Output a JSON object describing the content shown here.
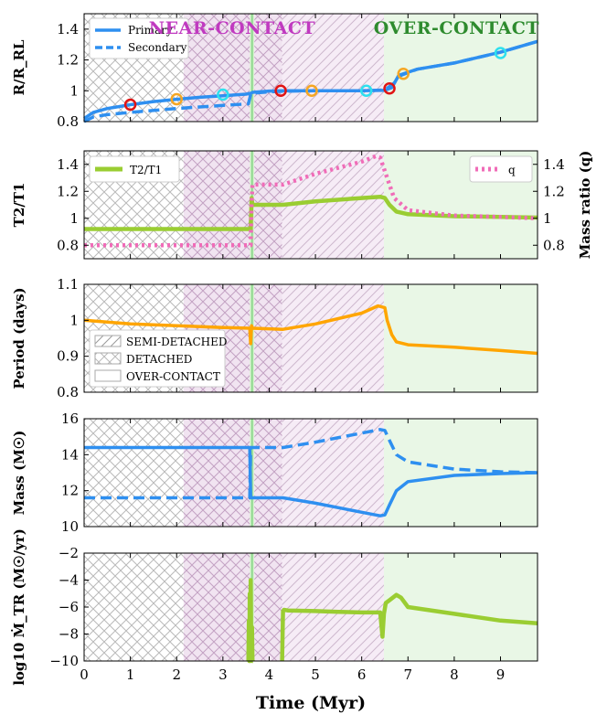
{
  "chart_data": {
    "type": "line",
    "xlabel": "Time (Myr)",
    "xlim": [
      0,
      9.8
    ],
    "xticks": [
      0,
      1,
      2,
      3,
      4,
      5,
      6,
      7,
      8,
      9
    ],
    "phases": {
      "labels": [
        {
          "text": "NEAR-CONTACT",
          "color": "#c03ac0",
          "x": 3.2
        },
        {
          "text": "OVER-CONTACT",
          "color": "#2e8b2e",
          "x": 8.05
        }
      ],
      "regions": [
        {
          "type": "detached",
          "x0": 0,
          "x1": 2.15
        },
        {
          "type": "near-detached",
          "x0": 2.15,
          "x1": 3.58
        },
        {
          "type": "overcontact-line",
          "x0": 3.58,
          "x1": 3.68
        },
        {
          "type": "near-detached",
          "x0": 3.68,
          "x1": 4.28
        },
        {
          "type": "near-semi",
          "x0": 4.28,
          "x1": 6.48
        },
        {
          "type": "overcontact",
          "x0": 6.48,
          "x1": 9.8
        }
      ]
    },
    "legend_regions": [
      "SEMI-DETACHED",
      "DETACHED",
      "OVER-CONTACT"
    ],
    "panels": [
      {
        "id": "radius",
        "ylabel": "R/R_RL",
        "ylim": [
          0.8,
          1.5
        ],
        "yticks": [
          0.8,
          1.0,
          1.2,
          1.4
        ],
        "legend": [
          "Primary",
          "Secondary"
        ],
        "series": [
          {
            "name": "Primary",
            "color": "#2e8ff0",
            "dash": "solid",
            "x": [
              0,
              0.2,
              0.5,
              1.0,
              1.5,
              2.0,
              2.5,
              3.0,
              3.5,
              3.62,
              3.64,
              4.0,
              4.3,
              5.0,
              5.5,
              6.0,
              6.5,
              6.65,
              6.8,
              7.2,
              8.0,
              9.0,
              9.8
            ],
            "y": [
              0.82,
              0.86,
              0.885,
              0.91,
              0.93,
              0.945,
              0.958,
              0.968,
              0.978,
              0.985,
              0.99,
              0.998,
              1.0,
              1.0,
              1.0,
              1.0,
              1.003,
              1.02,
              1.1,
              1.14,
              1.18,
              1.25,
              1.32
            ]
          },
          {
            "name": "Secondary",
            "color": "#2e8ff0",
            "dash": "dashed",
            "x": [
              0,
              0.2,
              0.5,
              1.0,
              2.0,
              3.0,
              3.55,
              3.6,
              3.64,
              4.0,
              4.3,
              5.0,
              6.0,
              6.5,
              6.7,
              6.85,
              7.2,
              8.0,
              9.0,
              9.8
            ],
            "y": [
              0.8,
              0.83,
              0.845,
              0.86,
              0.885,
              0.905,
              0.915,
              0.975,
              0.985,
              0.992,
              0.997,
              1.0,
              1.0,
              1.005,
              1.05,
              1.1,
              1.14,
              1.18,
              1.25,
              1.32
            ]
          }
        ],
        "markers": [
          {
            "x": 1.0,
            "y": 0.91,
            "color": "#e01414"
          },
          {
            "x": 2.0,
            "y": 0.945,
            "color": "#f5a623"
          },
          {
            "x": 3.0,
            "y": 0.975,
            "color": "#2ee0ee"
          },
          {
            "x": 4.25,
            "y": 1.0,
            "color": "#e01414"
          },
          {
            "x": 4.92,
            "y": 1.0,
            "color": "#f5a623"
          },
          {
            "x": 6.1,
            "y": 1.0,
            "color": "#2ee0ee"
          },
          {
            "x": 6.6,
            "y": 1.015,
            "color": "#e01414"
          },
          {
            "x": 6.9,
            "y": 1.11,
            "color": "#f5a623"
          },
          {
            "x": 9.0,
            "y": 1.245,
            "color": "#2ee0ee"
          }
        ]
      },
      {
        "id": "temp-ratio",
        "ylabel": "T2/T1",
        "ylabel_right": "Mass ratio (q)",
        "ylim": [
          0.7,
          1.5
        ],
        "yticks": [
          0.8,
          1.0,
          1.2,
          1.4
        ],
        "legend": [
          "T2/T1",
          "q"
        ],
        "series": [
          {
            "name": "T2/T1",
            "color": "#9acd32",
            "dash": "solid",
            "x": [
              0,
              3.6,
              3.62,
              3.64,
              4.3,
              5.0,
              6.0,
              6.4,
              6.5,
              6.6,
              6.75,
              7.0,
              8.0,
              9.0,
              9.8
            ],
            "y": [
              0.92,
              0.92,
              1.15,
              1.1,
              1.1,
              1.125,
              1.15,
              1.16,
              1.15,
              1.1,
              1.05,
              1.03,
              1.015,
              1.01,
              1.005
            ]
          },
          {
            "name": "q",
            "color": "#f06cb8",
            "dash": "dotted",
            "x": [
              0,
              3.6,
              3.62,
              3.64,
              4.3,
              5.0,
              6.0,
              6.3,
              6.4,
              6.55,
              6.7,
              7.0,
              8.0,
              9.0,
              9.8
            ],
            "y": [
              0.8,
              0.8,
              1.1,
              1.25,
              1.25,
              1.33,
              1.42,
              1.46,
              1.45,
              1.3,
              1.15,
              1.06,
              1.02,
              1.01,
              1.0
            ]
          }
        ]
      },
      {
        "id": "period",
        "ylabel": "Period (days)",
        "ylim": [
          0.8,
          1.1
        ],
        "yticks": [
          0.8,
          0.9,
          1.0,
          1.1
        ],
        "series": [
          {
            "name": "Period",
            "color": "#ffa500",
            "dash": "solid",
            "x": [
              0,
              1.0,
              2.0,
              3.0,
              3.58,
              3.6,
              3.62,
              3.64,
              4.3,
              5.0,
              6.0,
              6.35,
              6.5,
              6.55,
              6.65,
              6.75,
              7.0,
              8.0,
              9.0,
              9.8
            ],
            "y": [
              1.0,
              0.99,
              0.985,
              0.98,
              0.978,
              0.935,
              0.985,
              0.978,
              0.975,
              0.99,
              1.02,
              1.04,
              1.035,
              1.0,
              0.96,
              0.94,
              0.932,
              0.925,
              0.916,
              0.908
            ]
          }
        ]
      },
      {
        "id": "mass",
        "ylabel": "Mass (M☉)",
        "ylim": [
          10,
          16
        ],
        "yticks": [
          10,
          12,
          14,
          16
        ],
        "series": [
          {
            "name": "Primary",
            "color": "#2e8ff0",
            "dash": "solid",
            "x": [
              0,
              3.58,
              3.6,
              3.62,
              4.3,
              5.0,
              6.0,
              6.4,
              6.5,
              6.6,
              6.75,
              7.0,
              8.0,
              9.0,
              9.8
            ],
            "y": [
              14.4,
              14.4,
              11.6,
              11.6,
              11.6,
              11.3,
              10.8,
              10.6,
              10.65,
              11.2,
              12.0,
              12.5,
              12.85,
              12.95,
              13.0
            ]
          },
          {
            "name": "Secondary",
            "color": "#2e8ff0",
            "dash": "dashed",
            "x": [
              0,
              3.58,
              3.6,
              3.62,
              4.3,
              5.0,
              6.0,
              6.4,
              6.5,
              6.6,
              6.75,
              7.0,
              8.0,
              9.0,
              9.8
            ],
            "y": [
              11.6,
              11.6,
              14.4,
              14.4,
              14.4,
              14.7,
              15.2,
              15.4,
              15.35,
              14.8,
              14.0,
              13.6,
              13.2,
              13.05,
              13.0
            ]
          }
        ]
      },
      {
        "id": "mdot",
        "ylabel": "log10 Ṁ_TR (M☉/yr)",
        "ylim": [
          -10,
          -2
        ],
        "yticks": [
          -10,
          -8,
          -6,
          -4,
          -2
        ],
        "series": [
          {
            "name": "Mdot",
            "color": "#9acd32",
            "dash": "solid",
            "x": [
              3.55,
              3.56,
              3.57,
              3.58,
              3.59,
              3.6,
              3.61,
              3.62,
              3.63,
              3.64,
              3.65
            ],
            "y": [
              -10,
              -7.0,
              -10,
              -5.0,
              -10,
              -4.0,
              -8.0,
              -9.0,
              -7.5,
              -10,
              -10
            ]
          },
          {
            "name": "Mdot2",
            "color": "#9acd32",
            "dash": "solid",
            "x": [
              4.28,
              4.3,
              4.32,
              4.4,
              5.0,
              5.5,
              6.0,
              6.4,
              6.45,
              6.48,
              6.52,
              6.6,
              6.75,
              6.85,
              7.0,
              8.0,
              9.0,
              9.8
            ],
            "y": [
              -10,
              -6.3,
              -6.2,
              -6.25,
              -6.3,
              -6.35,
              -6.4,
              -6.4,
              -8.2,
              -6.5,
              -5.7,
              -5.5,
              -5.1,
              -5.3,
              -6.0,
              -6.5,
              -7.0,
              -7.2
            ]
          }
        ]
      }
    ]
  }
}
